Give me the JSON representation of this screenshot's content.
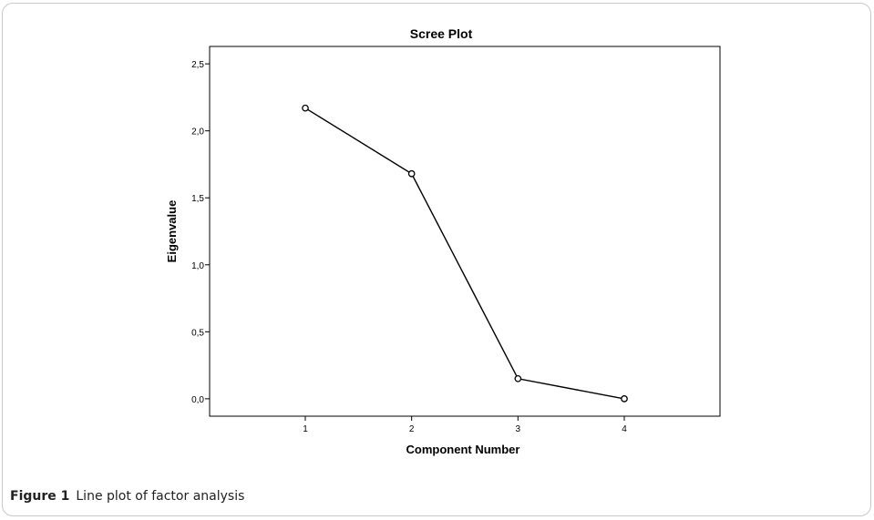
{
  "caption": {
    "label": "Figure 1",
    "text": "Line plot of factor analysis"
  },
  "chart_data": {
    "type": "line",
    "title": "Scree Plot",
    "xlabel": "Component Number",
    "ylabel": "Eigenvalue",
    "x": [
      1,
      2,
      3,
      4
    ],
    "xtick_labels": [
      "1",
      "2",
      "3",
      "4"
    ],
    "series": [
      {
        "values": [
          2.17,
          1.68,
          0.15,
          0.0
        ]
      }
    ],
    "xlim": [
      0.1,
      4.9
    ],
    "ylim": [
      -0.13,
      2.63
    ],
    "yticks": [
      0.0,
      0.5,
      1.0,
      1.5,
      2.0,
      2.5
    ],
    "ytick_labels": [
      "0,0",
      "0,5",
      "1,0",
      "1,5",
      "2,0",
      "2,5"
    ],
    "marker": "open-circle",
    "line_color": "#000000",
    "grid": false,
    "legend": "none"
  }
}
